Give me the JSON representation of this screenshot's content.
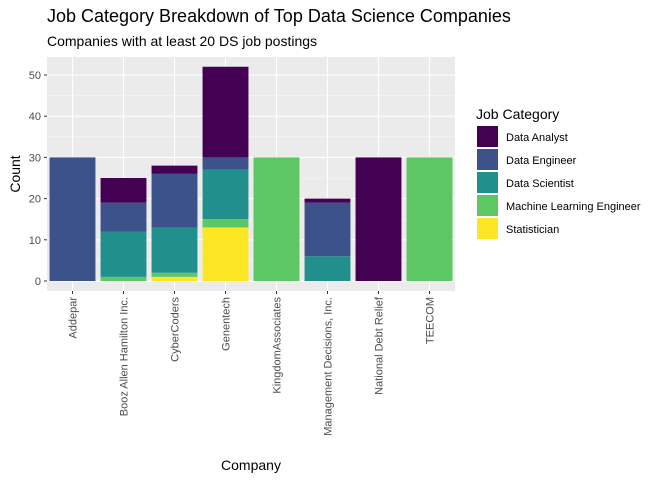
{
  "chart_data": {
    "type": "bar",
    "stacked": true,
    "title": "Job Category Breakdown of Top Data Science Companies",
    "subtitle": "Companies with at least 20 DS job postings",
    "xlabel": "Company",
    "ylabel": "Count",
    "ylim": [
      0,
      52
    ],
    "y_ticks": [
      0,
      10,
      20,
      30,
      40,
      50
    ],
    "grid": true,
    "legend_title": "Job Category",
    "legend_position": "right",
    "categories": [
      "Addepar",
      "Booz Allen Hamilton Inc.",
      "CyberCoders",
      "Genentech",
      "KingdomAssociates",
      "Management Decisions, Inc.",
      "National Debt Relief",
      "TEECOM"
    ],
    "series": [
      {
        "name": "Data Analyst",
        "color": "#440154",
        "values": [
          0,
          6,
          2,
          22,
          0,
          1,
          30,
          0
        ]
      },
      {
        "name": "Data Engineer",
        "color": "#3B528B",
        "values": [
          30,
          7,
          13,
          3,
          0,
          13,
          0,
          0
        ]
      },
      {
        "name": "Data Scientist",
        "color": "#21908C",
        "values": [
          0,
          11,
          11,
          12,
          0,
          6,
          0,
          0
        ]
      },
      {
        "name": "Machine Learning Engineer",
        "color": "#5DC863",
        "values": [
          0,
          1,
          1,
          2,
          30,
          0,
          0,
          30
        ]
      },
      {
        "name": "Statistician",
        "color": "#FDE725",
        "values": [
          0,
          0,
          1,
          13,
          0,
          0,
          0,
          0
        ]
      }
    ]
  }
}
